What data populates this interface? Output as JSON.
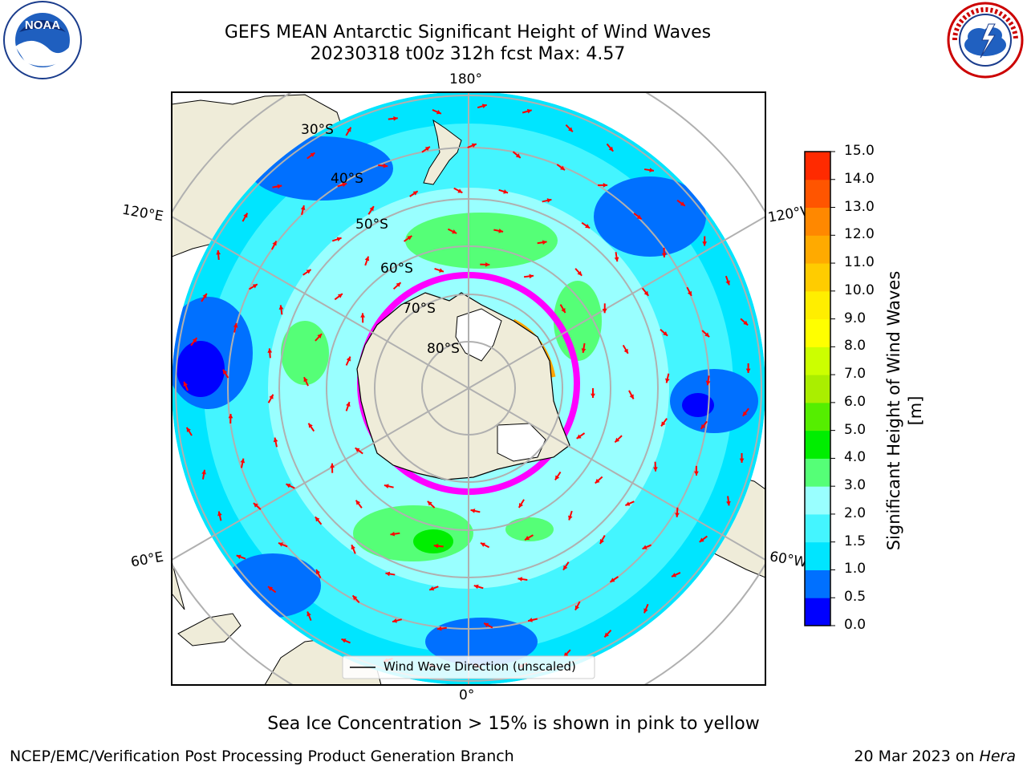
{
  "header": {
    "title_line1": "GEFS MEAN Antarctic Significant Height of Wind Waves",
    "title_line2": "20230318 t00z 312h fcst   Max: 4.57"
  },
  "logos": {
    "left": {
      "name": "noaa-logo",
      "text": "NOAA"
    },
    "right": {
      "name": "nws-logo",
      "text": "NATIONAL WEATHER SERVICE"
    }
  },
  "map": {
    "projection": "south-polar-stereographic",
    "lon_labels": {
      "top": "180°",
      "bottom": "0°",
      "left_upper": "120°E",
      "left_lower": "60°E",
      "right_upper": "120°W",
      "right_lower": "60°W"
    },
    "lat_labels": [
      "30°S",
      "40°S",
      "50°S",
      "60°S",
      "70°S",
      "80°S"
    ],
    "legend_label": "Wind Wave Direction (unscaled)",
    "arrow_color": "#ff0000",
    "land_color": "#efecd9",
    "ice_colors": [
      "#ff00ff",
      "#ffa500",
      "#ffff00"
    ]
  },
  "colorbar": {
    "label": "Significant Height of Wind Waves [m]",
    "ticks": [
      "0.0",
      "0.5",
      "1.0",
      "1.5",
      "2.0",
      "3.0",
      "4.0",
      "5.0",
      "6.0",
      "7.0",
      "8.0",
      "9.0",
      "10.0",
      "11.0",
      "12.0",
      "13.0",
      "14.0",
      "15.0"
    ],
    "colors": [
      "#0000ff",
      "#0070ff",
      "#00e5ff",
      "#44f5ff",
      "#99ffff",
      "#55ff77",
      "#00ee00",
      "#55ee00",
      "#aaee00",
      "#ccff00",
      "#ffff00",
      "#ffee00",
      "#ffcc00",
      "#ffaa00",
      "#ff8800",
      "#ff5500",
      "#ff2a00"
    ]
  },
  "footer": {
    "note": "Sea Ice Concentration > 15% is shown in pink to yellow",
    "credit": "NCEP/EMC/Verification Post Processing Product Generation Branch",
    "date": "20 Mar 2023 on ",
    "system": "Hera"
  }
}
